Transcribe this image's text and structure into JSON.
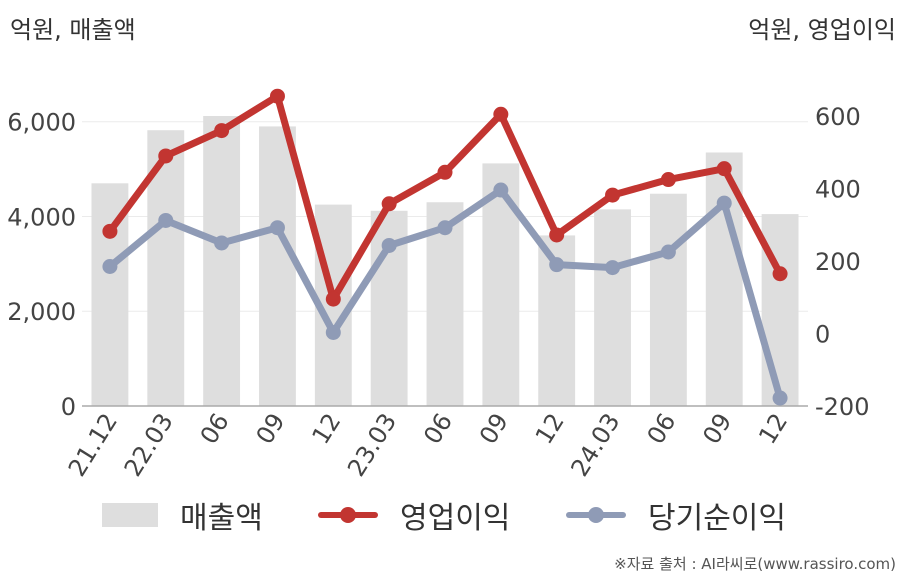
{
  "unit_left": "억원, 매출액",
  "unit_right": "억원, 영업이익",
  "source": "※자료 출처 : AI라씨로(www.rassiro.com)",
  "colors": {
    "bar": "#dedede",
    "operating_profit": "#c23531",
    "net_income": "#8f9bb6",
    "axis": "#aaaaaa",
    "grid": "#ebebeb",
    "text": "#444444"
  },
  "chart_data": {
    "type": "bar+line",
    "categories": [
      "21.12",
      "22.03",
      "06",
      "09",
      "12",
      "23.03",
      "06",
      "09",
      "12",
      "24.03",
      "06",
      "09",
      "12"
    ],
    "y_left": {
      "ticks": [
        0,
        2000,
        4000,
        6000
      ],
      "tick_labels": [
        "0",
        "2,000",
        "4,000",
        "6,000"
      ],
      "range": [
        0,
        6500
      ]
    },
    "y_right": {
      "ticks": [
        -200,
        0,
        200,
        400,
        600
      ],
      "tick_labels": [
        "-200",
        "0",
        "200",
        "400",
        "600"
      ],
      "range": [
        -200,
        650
      ]
    },
    "grid": true,
    "legend_position": "bottom",
    "series": [
      {
        "name": "매출액",
        "type": "bar",
        "axis": "left",
        "values": [
          4700,
          5820,
          6120,
          5900,
          4250,
          4120,
          4300,
          5120,
          3600,
          4150,
          4480,
          5350,
          4050
        ]
      },
      {
        "name": "영업이익",
        "type": "line",
        "axis": "right",
        "values": [
          282,
          490,
          560,
          655,
          95,
          358,
          445,
          605,
          272,
          382,
          425,
          455,
          165
        ]
      },
      {
        "name": "당기순이익",
        "type": "line",
        "axis": "right",
        "values": [
          185,
          312,
          250,
          292,
          3,
          243,
          292,
          396,
          190,
          182,
          225,
          360,
          -178
        ]
      }
    ]
  }
}
